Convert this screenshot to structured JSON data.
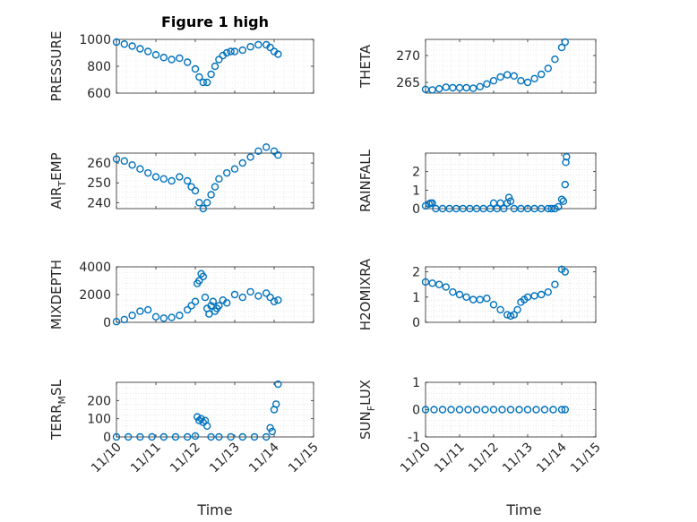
{
  "figure_title": "Figure 1 high",
  "colors": {
    "marker": "#0072BD",
    "axis": "#262626",
    "grid": "#d9d9d9"
  },
  "shared": {
    "xlabel": "Time",
    "xtick_labels": [
      "11/10",
      "11/11",
      "11/12",
      "11/13",
      "11/14",
      "11/15"
    ],
    "xlim": [
      0,
      5
    ]
  },
  "chart_data": [
    {
      "type": "scatter",
      "name": "pressure",
      "title": "Figure 1 high",
      "ylabel": "PRESSURE",
      "ylim": [
        600,
        1000
      ],
      "yticks": [
        600,
        800,
        1000
      ],
      "ytick_labels": [
        "600",
        "800",
        "1000"
      ],
      "x": [
        0,
        0.2,
        0.4,
        0.6,
        0.8,
        1.0,
        1.2,
        1.4,
        1.6,
        1.8,
        2.0,
        2.1,
        2.2,
        2.3,
        2.4,
        2.5,
        2.6,
        2.7,
        2.8,
        2.9,
        3.0,
        3.2,
        3.4,
        3.6,
        3.8,
        3.9,
        4.0,
        4.1
      ],
      "y": [
        980,
        965,
        950,
        930,
        910,
        885,
        865,
        850,
        860,
        830,
        780,
        720,
        680,
        680,
        740,
        800,
        850,
        880,
        900,
        910,
        910,
        920,
        945,
        960,
        960,
        940,
        910,
        890
      ]
    },
    {
      "type": "scatter",
      "name": "theta",
      "title": "",
      "ylabel": "THETA",
      "ylim": [
        263,
        273
      ],
      "yticks": [
        265,
        270
      ],
      "ytick_labels": [
        "265",
        "270"
      ],
      "x": [
        0,
        0.2,
        0.4,
        0.6,
        0.8,
        1.0,
        1.2,
        1.4,
        1.6,
        1.8,
        2.0,
        2.2,
        2.4,
        2.6,
        2.8,
        3.0,
        3.2,
        3.4,
        3.6,
        3.8,
        4.0,
        4.1
      ],
      "y": [
        263.7,
        263.6,
        263.8,
        264.1,
        264.0,
        264.0,
        264.0,
        263.9,
        264.2,
        264.7,
        265.3,
        266.0,
        266.4,
        266.2,
        265.3,
        265.0,
        265.7,
        266.5,
        267.6,
        269.3,
        271.5,
        272.5
      ]
    },
    {
      "type": "scatter",
      "name": "air-temp",
      "title": "",
      "ylabel": "AIR",
      "ylabel_sub": "T",
      "ylabel_tail": "EMP",
      "ylim": [
        237,
        265
      ],
      "yticks": [
        240,
        250,
        260
      ],
      "ytick_labels": [
        "240",
        "250",
        "260"
      ],
      "x": [
        0,
        0.2,
        0.4,
        0.6,
        0.8,
        1.0,
        1.2,
        1.4,
        1.6,
        1.8,
        1.9,
        2.0,
        2.1,
        2.2,
        2.3,
        2.4,
        2.5,
        2.6,
        2.8,
        3.0,
        3.2,
        3.4,
        3.6,
        3.8,
        4.0,
        4.1
      ],
      "y": [
        262,
        261,
        259,
        257,
        255,
        253,
        252,
        251,
        253,
        251,
        248,
        246,
        240,
        237,
        240,
        244,
        248,
        252,
        255,
        257,
        260,
        263,
        266,
        268,
        266,
        264
      ]
    },
    {
      "type": "scatter",
      "name": "rainfall",
      "title": "",
      "ylabel": "RAINFALL",
      "ylim": [
        0,
        3
      ],
      "yticks": [
        0,
        1,
        2
      ],
      "ytick_labels": [
        "0",
        "1",
        "2"
      ],
      "x": [
        0.0,
        0.1,
        0.15,
        0.2,
        0.3,
        0.5,
        0.7,
        0.9,
        1.1,
        1.3,
        1.5,
        1.7,
        1.9,
        2.0,
        2.1,
        2.2,
        2.3,
        2.4,
        2.45,
        2.5,
        2.6,
        2.8,
        3.0,
        3.2,
        3.4,
        3.6,
        3.7,
        3.8,
        3.9,
        4.0,
        4.05,
        4.1,
        4.12,
        4.14
      ],
      "y": [
        0.15,
        0.25,
        0.3,
        0.3,
        0,
        0,
        0,
        0,
        0,
        0,
        0,
        0,
        0,
        0.3,
        0,
        0.3,
        0,
        0.3,
        0.6,
        0.4,
        0,
        0,
        0,
        0,
        0,
        0,
        0,
        0,
        0.1,
        0.5,
        0.4,
        1.3,
        2.5,
        2.8
      ]
    },
    {
      "type": "scatter",
      "name": "mixdepth",
      "title": "",
      "ylabel": "MIXDEPTH",
      "ylim": [
        0,
        4000
      ],
      "yticks": [
        0,
        2000,
        4000
      ],
      "ytick_labels": [
        "0",
        "2000",
        "4000"
      ],
      "x": [
        0,
        0.2,
        0.4,
        0.6,
        0.8,
        1.0,
        1.2,
        1.4,
        1.6,
        1.8,
        1.9,
        2.0,
        2.05,
        2.1,
        2.15,
        2.2,
        2.25,
        2.3,
        2.35,
        2.4,
        2.45,
        2.5,
        2.55,
        2.6,
        2.7,
        2.8,
        3.0,
        3.2,
        3.4,
        3.6,
        3.8,
        3.9,
        4.0,
        4.1
      ],
      "y": [
        50,
        200,
        500,
        800,
        900,
        400,
        300,
        350,
        500,
        900,
        1200,
        1500,
        2800,
        3000,
        3500,
        3300,
        1800,
        1000,
        600,
        1200,
        1500,
        800,
        1000,
        1200,
        1600,
        1400,
        2000,
        1800,
        2200,
        1900,
        2100,
        1800,
        1500,
        1600
      ]
    },
    {
      "type": "scatter",
      "name": "h2omixra",
      "title": "",
      "ylabel": "H2OMIXRA",
      "ylim": [
        0,
        2.2
      ],
      "yticks": [
        0,
        1,
        2
      ],
      "ytick_labels": [
        "0",
        "1",
        "2"
      ],
      "x": [
        0,
        0.2,
        0.4,
        0.6,
        0.8,
        1.0,
        1.2,
        1.4,
        1.6,
        1.8,
        2.0,
        2.2,
        2.4,
        2.5,
        2.6,
        2.7,
        2.8,
        2.9,
        3.0,
        3.2,
        3.4,
        3.6,
        3.8,
        4.0,
        4.1
      ],
      "y": [
        1.6,
        1.55,
        1.5,
        1.4,
        1.2,
        1.1,
        1.0,
        0.9,
        0.9,
        0.95,
        0.7,
        0.5,
        0.3,
        0.25,
        0.3,
        0.5,
        0.8,
        0.9,
        1.0,
        1.05,
        1.1,
        1.2,
        1.5,
        2.1,
        2.0
      ]
    },
    {
      "type": "scatter",
      "name": "terr-msl",
      "title": "",
      "ylabel": "TERR",
      "ylabel_sub": "M",
      "ylabel_tail": "SL",
      "ylim": [
        0,
        300
      ],
      "yticks": [
        0,
        100,
        200
      ],
      "ytick_labels": [
        "0",
        "100",
        "200"
      ],
      "x": [
        0.0,
        0.3,
        0.6,
        0.9,
        1.2,
        1.5,
        1.8,
        2.0,
        2.05,
        2.1,
        2.15,
        2.2,
        2.25,
        2.3,
        2.4,
        2.6,
        2.9,
        3.2,
        3.5,
        3.8,
        3.9,
        3.95,
        4.0,
        4.05,
        4.1
      ],
      "y": [
        0,
        0,
        0,
        0,
        0,
        0,
        0,
        5,
        110,
        90,
        100,
        80,
        90,
        60,
        0,
        0,
        0,
        0,
        0,
        0,
        50,
        30,
        150,
        180,
        290
      ]
    },
    {
      "type": "scatter",
      "name": "sun-flux",
      "title": "",
      "ylabel": "SUN",
      "ylabel_sub": "F",
      "ylabel_tail": "LUX",
      "ylim": [
        -1,
        1
      ],
      "yticks": [
        -1,
        0,
        1
      ],
      "ytick_labels": [
        "-1",
        "0",
        "1"
      ],
      "x": [
        0,
        0.25,
        0.5,
        0.75,
        1.0,
        1.25,
        1.5,
        1.75,
        2.0,
        2.25,
        2.5,
        2.75,
        3.0,
        3.25,
        3.5,
        3.75,
        4.0,
        4.1
      ],
      "y": [
        0,
        0,
        0,
        0,
        0,
        0,
        0,
        0,
        0,
        0,
        0,
        0,
        0,
        0,
        0,
        0,
        0,
        0
      ]
    }
  ]
}
